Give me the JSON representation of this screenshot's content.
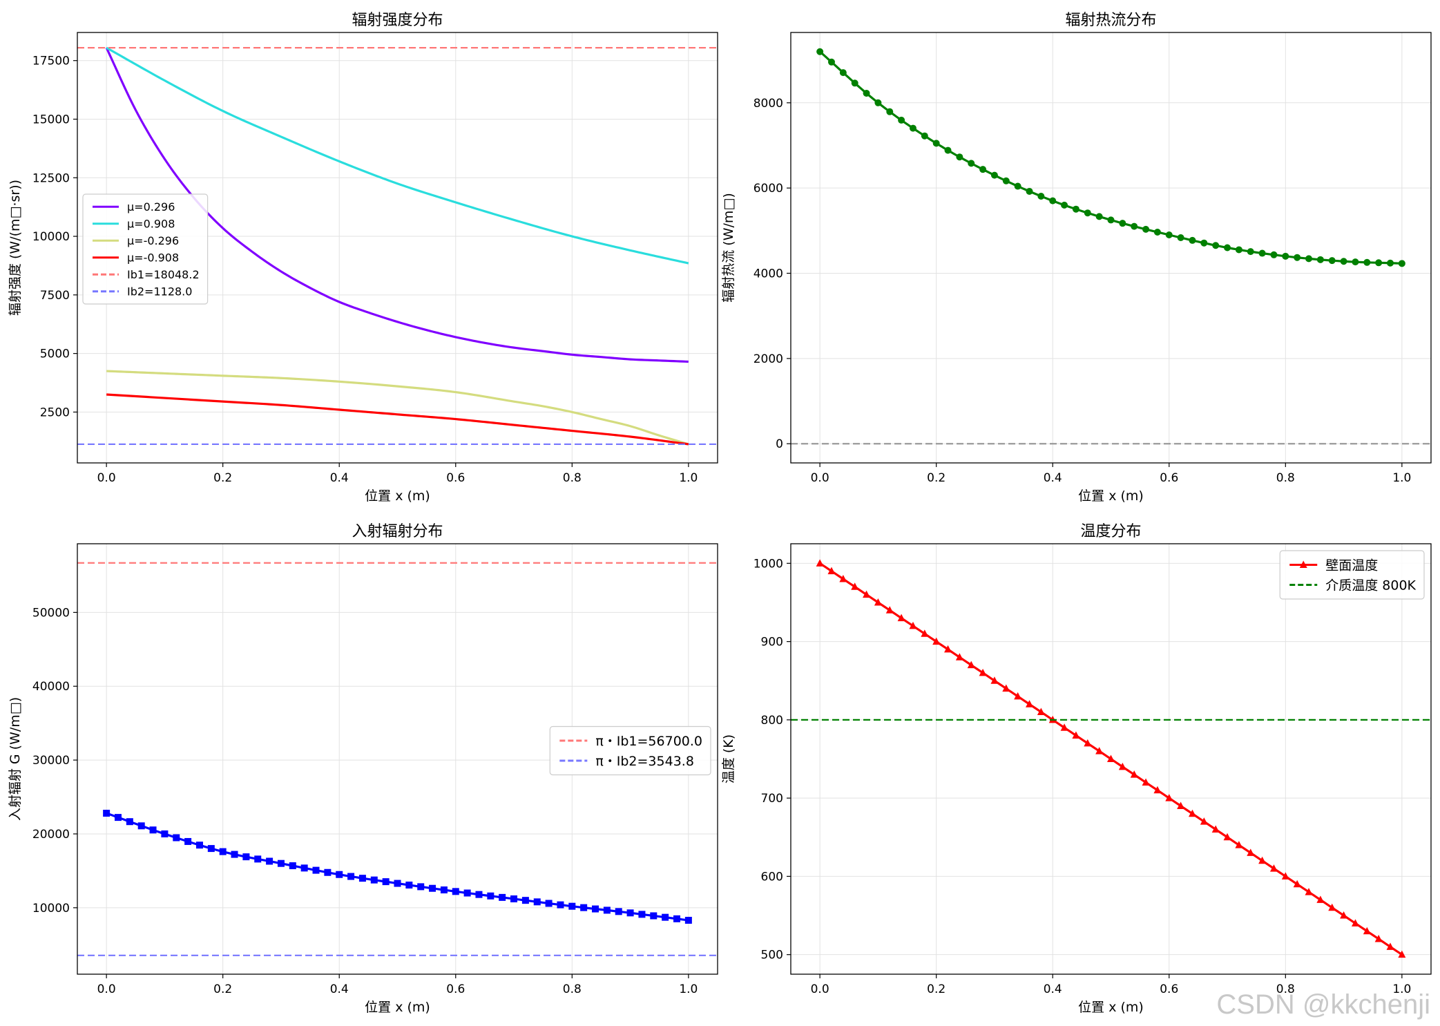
{
  "watermark": "CSDN @kkchenji",
  "chart_data": [
    {
      "type": "line",
      "title": "辐射强度分布",
      "xlabel": "位置 x (m)",
      "ylabel": "辐射强度 (W/(m□·sr))",
      "xlim": [
        -0.05,
        1.05
      ],
      "ylim": [
        330,
        18700
      ],
      "xticks": [
        0.0,
        0.2,
        0.4,
        0.6,
        0.8,
        1.0
      ],
      "yticks": [
        2500,
        5000,
        7500,
        10000,
        12500,
        15000,
        17500
      ],
      "grid": true,
      "legend": "center-left",
      "series": [
        {
          "name": "μ=0.296",
          "color": "#8000ff",
          "style": "solid",
          "x": [
            0.0,
            0.05,
            0.1,
            0.15,
            0.2,
            0.25,
            0.3,
            0.35,
            0.4,
            0.45,
            0.5,
            0.55,
            0.6,
            0.65,
            0.7,
            0.75,
            0.8,
            0.85,
            0.9,
            0.95,
            1.0
          ],
          "y": [
            18048,
            15400,
            13300,
            11650,
            10350,
            9350,
            8500,
            7800,
            7200,
            6750,
            6350,
            6000,
            5700,
            5450,
            5250,
            5100,
            4950,
            4850,
            4750,
            4700,
            4650
          ]
        },
        {
          "name": "μ=0.908",
          "color": "#2adddd",
          "style": "solid",
          "x": [
            0.0,
            0.1,
            0.2,
            0.3,
            0.4,
            0.5,
            0.6,
            0.7,
            0.8,
            0.9,
            1.0
          ],
          "y": [
            18048,
            16650,
            15350,
            14250,
            13200,
            12250,
            11450,
            10700,
            10000,
            9400,
            8850
          ]
        },
        {
          "name": "μ=-0.296",
          "color": "#d4dc7f",
          "style": "solid",
          "x": [
            0.0,
            0.1,
            0.2,
            0.3,
            0.4,
            0.5,
            0.6,
            0.7,
            0.75,
            0.8,
            0.85,
            0.9,
            0.95,
            1.0
          ],
          "y": [
            4250,
            4150,
            4050,
            3950,
            3800,
            3600,
            3350,
            2950,
            2750,
            2500,
            2200,
            1900,
            1500,
            1128
          ]
        },
        {
          "name": "μ=-0.908",
          "color": "#ff0000",
          "style": "solid",
          "x": [
            0.0,
            0.1,
            0.2,
            0.3,
            0.4,
            0.5,
            0.6,
            0.7,
            0.8,
            0.9,
            1.0
          ],
          "y": [
            3250,
            3100,
            2950,
            2800,
            2600,
            2400,
            2200,
            1950,
            1700,
            1450,
            1128
          ]
        },
        {
          "name": "Ib1=18048.2",
          "color": "#ff7777",
          "style": "dashed",
          "hline": 18048.2
        },
        {
          "name": "Ib2=1128.0",
          "color": "#7777ff",
          "style": "dashed",
          "hline": 1128.0
        }
      ]
    },
    {
      "type": "line",
      "title": "辐射热流分布",
      "xlabel": "位置 x (m)",
      "ylabel": "辐射热流 (W/m□)",
      "xlim": [
        -0.05,
        1.05
      ],
      "ylim": [
        -450,
        9650
      ],
      "xticks": [
        0.0,
        0.2,
        0.4,
        0.6,
        0.8,
        1.0
      ],
      "yticks": [
        0,
        2000,
        4000,
        6000,
        8000
      ],
      "grid": true,
      "series": [
        {
          "color": "#008000",
          "style": "solid",
          "marker": "circle",
          "x": [
            0.0,
            0.1,
            0.2,
            0.3,
            0.4,
            0.5,
            0.6,
            0.7,
            0.8,
            0.9,
            1.0
          ],
          "y": [
            9200,
            8000,
            7050,
            6300,
            5700,
            5250,
            4900,
            4600,
            4400,
            4280,
            4230
          ]
        },
        {
          "color": "#999999",
          "style": "dashed",
          "hline": 0
        }
      ]
    },
    {
      "type": "line",
      "title": "入射辐射分布",
      "xlabel": "位置 x (m)",
      "ylabel": "入射辐射 G (W/m□)",
      "xlim": [
        -0.05,
        1.05
      ],
      "ylim": [
        1000,
        59300
      ],
      "xticks": [
        0.0,
        0.2,
        0.4,
        0.6,
        0.8,
        1.0
      ],
      "yticks": [
        10000,
        20000,
        30000,
        40000,
        50000
      ],
      "grid": true,
      "legend": "center-right",
      "series": [
        {
          "color": "#0000ff",
          "style": "solid",
          "marker": "square",
          "x": [
            0.0,
            0.1,
            0.2,
            0.3,
            0.4,
            0.5,
            0.6,
            0.7,
            0.8,
            0.9,
            1.0
          ],
          "y": [
            22800,
            20000,
            17600,
            16000,
            14500,
            13300,
            12200,
            11200,
            10200,
            9300,
            8300
          ]
        },
        {
          "name": "π・Ib1=56700.0",
          "color": "#ff7777",
          "style": "dashed",
          "hline": 56700.0
        },
        {
          "name": "π・Ib2=3543.8",
          "color": "#7777ff",
          "style": "dashed",
          "hline": 3543.8
        }
      ]
    },
    {
      "type": "line",
      "title": "温度分布",
      "xlabel": "位置 x (m)",
      "ylabel": "温度 (K)",
      "xlim": [
        -0.05,
        1.05
      ],
      "ylim": [
        475,
        1025
      ],
      "xticks": [
        0.0,
        0.2,
        0.4,
        0.6,
        0.8,
        1.0
      ],
      "yticks": [
        500,
        600,
        700,
        800,
        900,
        1000
      ],
      "grid": true,
      "legend": "top-right",
      "series": [
        {
          "name": "壁面温度",
          "color": "#ff0000",
          "style": "solid",
          "marker": "triangle",
          "x": [
            0.0,
            1.0
          ],
          "y": [
            1000,
            500
          ]
        },
        {
          "name": "介质温度 800K",
          "color": "#008000",
          "style": "dashed",
          "hline": 800
        }
      ]
    }
  ]
}
